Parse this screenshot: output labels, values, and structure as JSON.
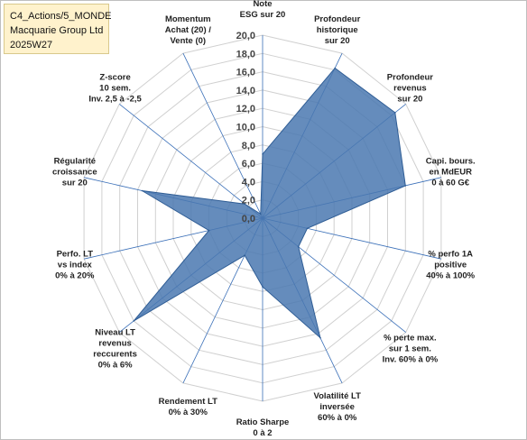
{
  "header": {
    "line1": "C4_Actions/5_MONDE",
    "line2": "Macquarie Group Ltd",
    "line3": "2025W27"
  },
  "colors": {
    "fill": "#4a78b0",
    "stroke": "#2f5d95",
    "grid": "#d0d0d0",
    "spoke": "#3a6fb8",
    "title_bg": "#fff2cc"
  },
  "chart_data": {
    "type": "radar",
    "rmin": 0,
    "rmax": 20,
    "ticks": [
      "0,0",
      "2,0",
      "4,0",
      "6,0",
      "8,0",
      "10,0",
      "12,0",
      "14,0",
      "16,0",
      "18,0",
      "20,0"
    ],
    "axes": [
      {
        "label": [
          "Note",
          "ESG sur 20"
        ],
        "value": 7.0
      },
      {
        "label": [
          "Profondeur",
          "historique",
          "sur 20"
        ],
        "value": 18.2
      },
      {
        "label": [
          "Profondeur",
          "revenus",
          "sur 20"
        ],
        "value": 18.5
      },
      {
        "label": [
          "Capi. bours.",
          "en MdEUR",
          "0 à 60 G€"
        ],
        "value": 16.0
      },
      {
        "label": [
          "% perfo 1A",
          "positive",
          "40% à 100%"
        ],
        "value": 5.0
      },
      {
        "label": [
          "% perte max.",
          "sur 1 sem.",
          "Inv. 60% à 0%"
        ],
        "value": 5.0
      },
      {
        "label": [
          "Volatilité LT",
          "inversée",
          "60% à 0%"
        ],
        "value": 14.5
      },
      {
        "label": [
          "Ratio Sharpe",
          "0 à 2"
        ],
        "value": 7.5
      },
      {
        "label": [
          "Rendement LT",
          "0% à 30%"
        ],
        "value": 4.5
      },
      {
        "label": [
          "Niveau LT",
          "revenus",
          "reccurents",
          "0% à 6%"
        ],
        "value": 18.0
      },
      {
        "label": [
          "Perfo. LT",
          "vs index",
          "0% à 20%"
        ],
        "value": 6.0
      },
      {
        "label": [
          "Régularité",
          "croissance",
          "sur 20"
        ],
        "value": 13.5
      },
      {
        "label": [
          "Z-score",
          "10 sem.",
          "Inv. 2,5 à -2,5"
        ],
        "value": 2.5
      },
      {
        "label": [
          "Momentum",
          "Achat (20) /",
          "Vente (0)"
        ],
        "value": 0.5
      }
    ]
  }
}
